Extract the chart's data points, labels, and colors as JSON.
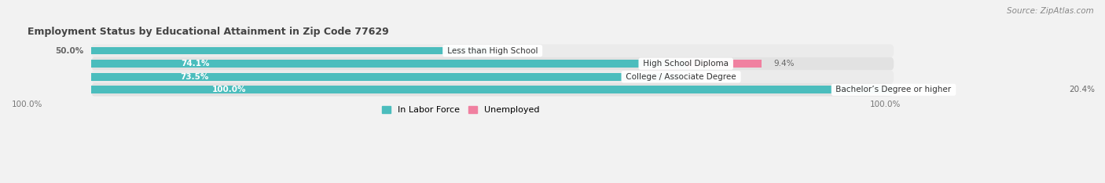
{
  "title": "Employment Status by Educational Attainment in Zip Code 77629",
  "source": "Source: ZipAtlas.com",
  "categories": [
    "Less than High School",
    "High School Diploma",
    "College / Associate Degree",
    "Bachelor’s Degree or higher"
  ],
  "in_labor_force": [
    50.0,
    74.1,
    73.5,
    100.0
  ],
  "unemployed": [
    0.0,
    9.4,
    0.0,
    20.4
  ],
  "color_labor": "#4BBDBD",
  "color_unemployed": "#F080A0",
  "bar_height": 0.58,
  "bg_color": "#F2F2F2",
  "row_colors": [
    "#EBEBEB",
    "#E2E2E2"
  ],
  "label_color_inside": "#FFFFFF",
  "label_color_outside": "#666666",
  "legend_items": [
    "In Labor Force",
    "Unemployed"
  ],
  "xlim_data": [
    0,
    100
  ],
  "figsize": [
    14.06,
    2.33
  ],
  "dpi": 100
}
